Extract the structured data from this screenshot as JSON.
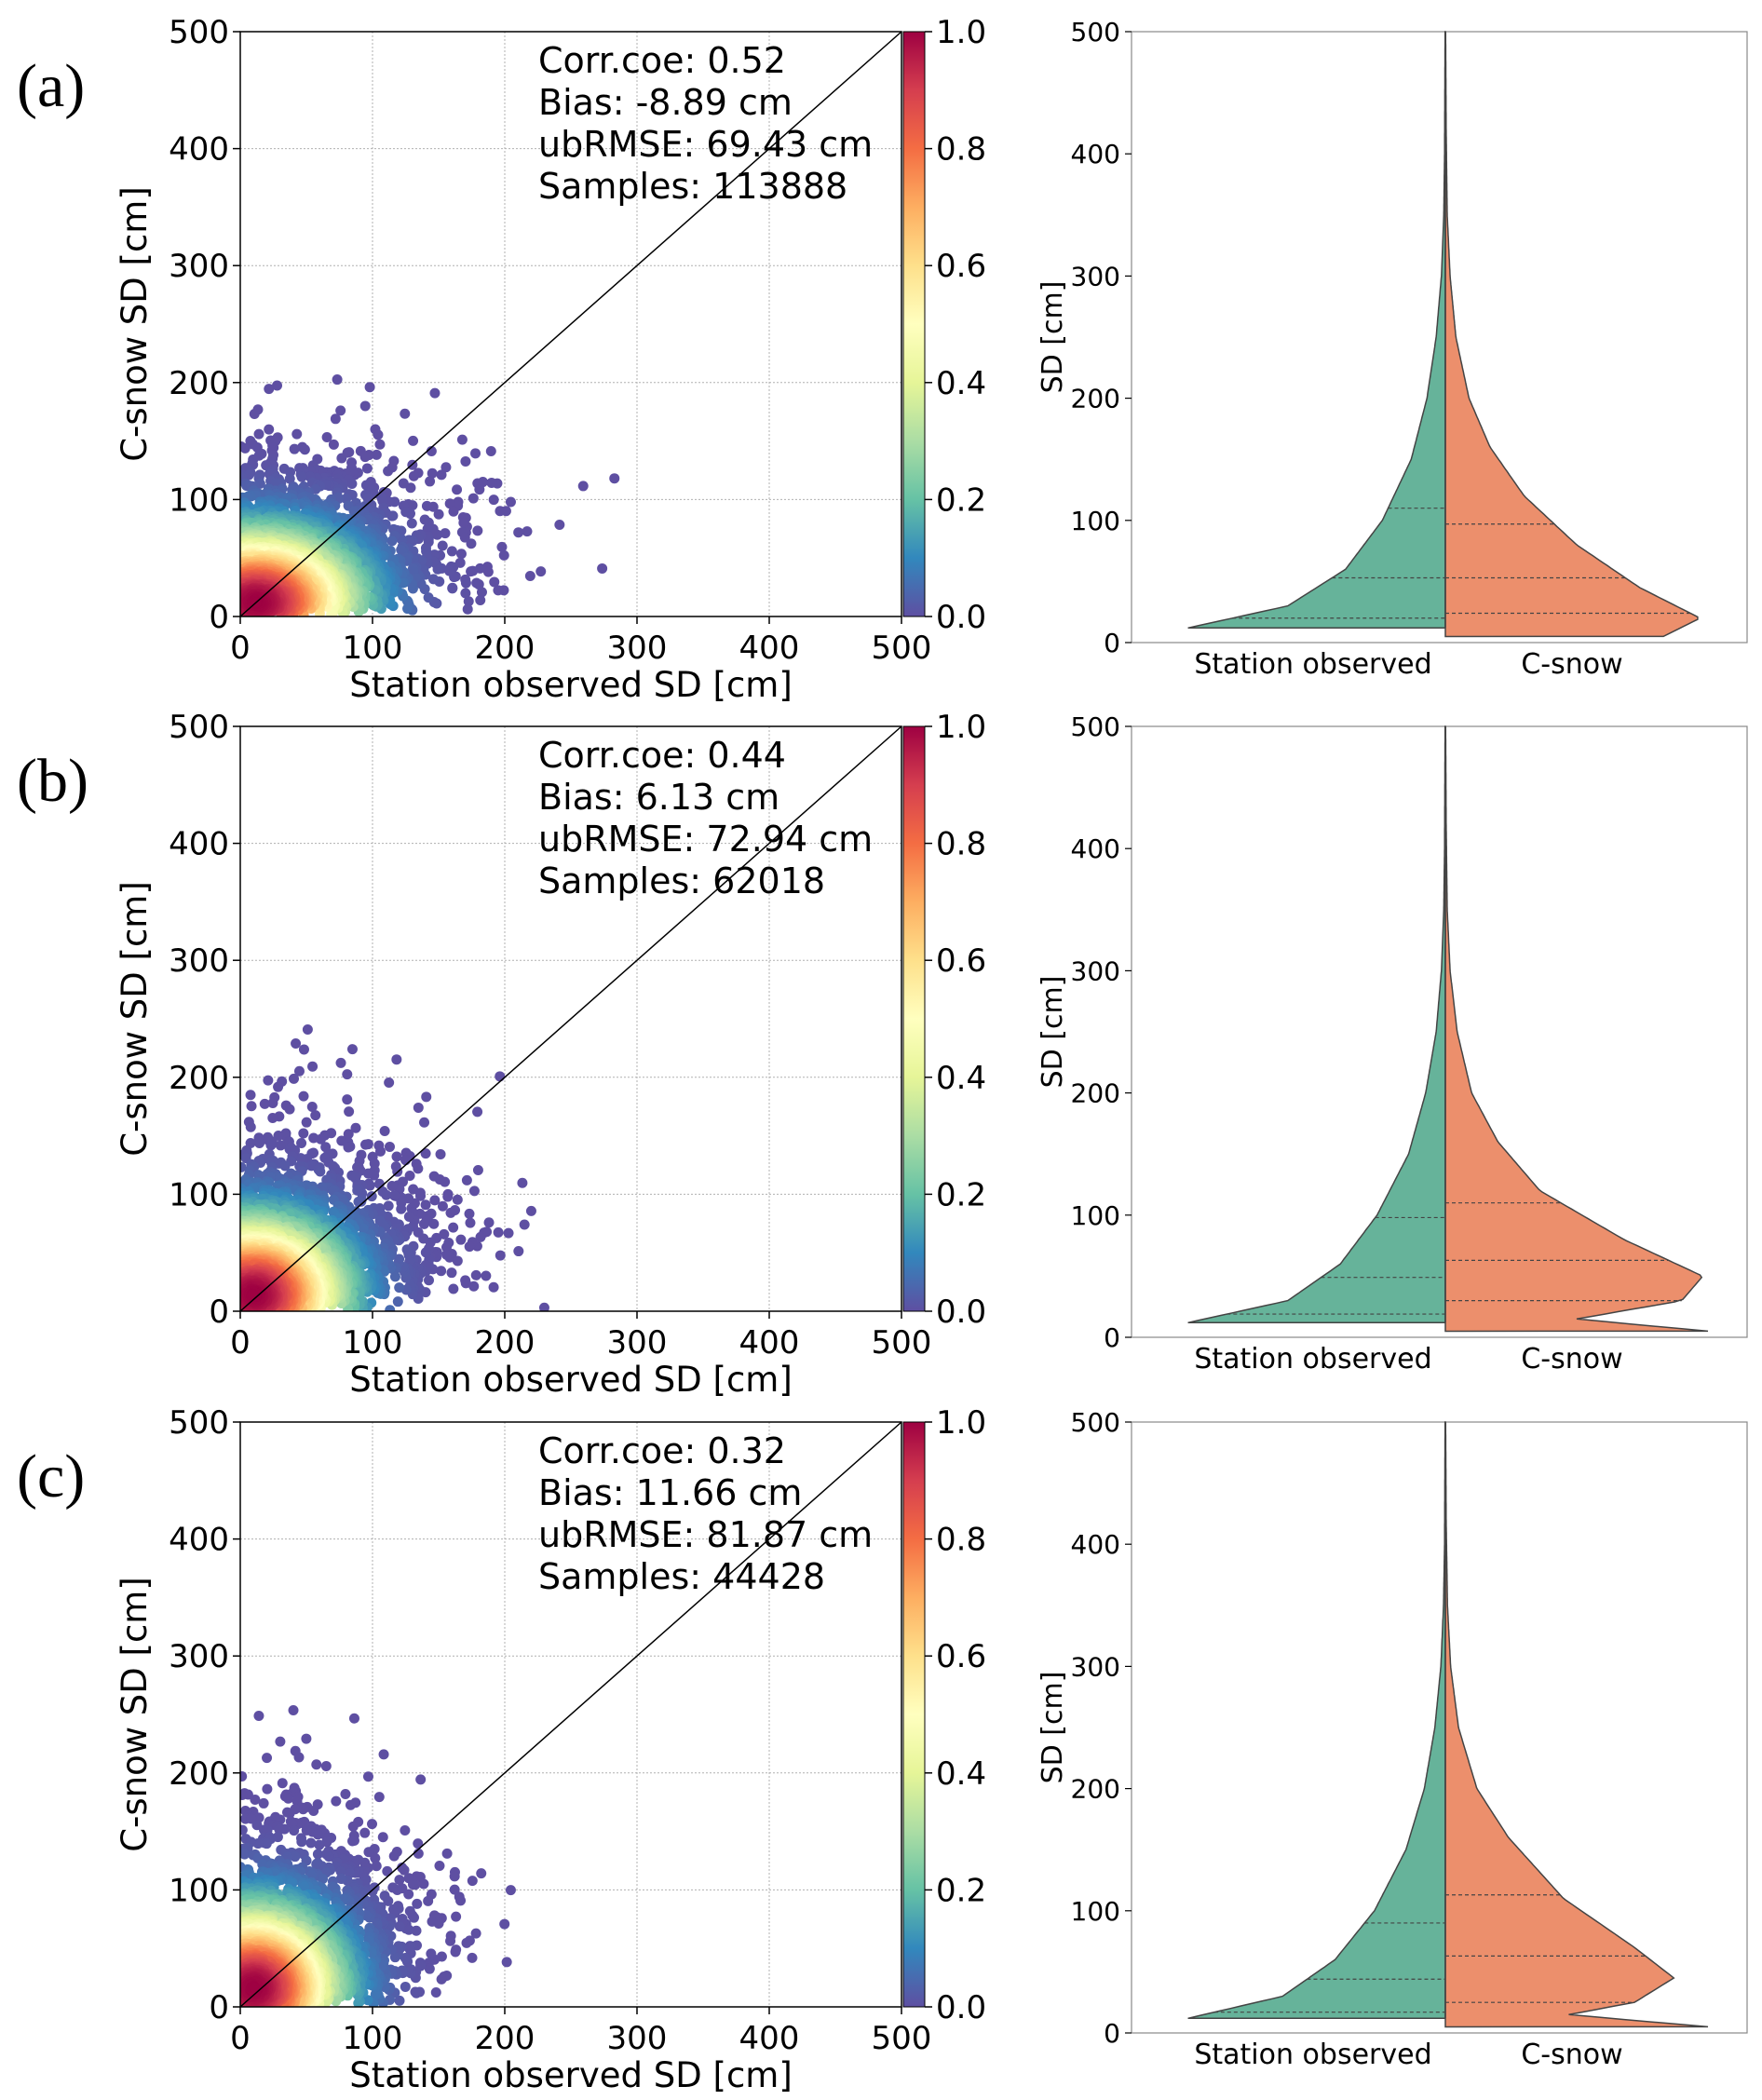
{
  "chart_data": [
    {
      "type": "scatter",
      "panel_label": "(a)",
      "xlabel": "Station observed SD [cm]",
      "ylabel": "C-snow SD [cm]",
      "xlim": [
        0,
        500
      ],
      "ylim": [
        0,
        500
      ],
      "x_ticks": [
        "0",
        "100",
        "200",
        "300",
        "400",
        "500"
      ],
      "y_ticks": [
        "0",
        "100",
        "200",
        "300",
        "400",
        "500"
      ],
      "colorbar_ticks": [
        "0.0",
        "0.2",
        "0.4",
        "0.6",
        "0.8",
        "1.0"
      ],
      "colorbar_range": [
        0,
        1
      ],
      "reference_line": "1:1",
      "stats": {
        "corr": "Corr.coe: 0.52",
        "bias": "Bias: -8.89 cm",
        "ubrmse": "ubRMSE: 69.43 cm",
        "samples": "Samples: 113888"
      },
      "density_center": [
        12,
        12
      ],
      "spread": [
        95,
        75
      ]
    },
    {
      "type": "violin",
      "panel_label": "(a)",
      "ylabel": "SD [cm]",
      "ylim": [
        0,
        500
      ],
      "y_ticks": [
        "0",
        "100",
        "200",
        "300",
        "400",
        "500"
      ],
      "categories": [
        "Station observed",
        "C-snow"
      ],
      "colors": [
        "#66b39a",
        "#ec8f6c"
      ],
      "station_quartiles": [
        20,
        53,
        110
      ],
      "csnow_quartiles": [
        24,
        53,
        97
      ],
      "station_profile": [
        [
          12,
          0.98
        ],
        [
          30,
          0.6
        ],
        [
          60,
          0.38
        ],
        [
          100,
          0.24
        ],
        [
          150,
          0.13
        ],
        [
          200,
          0.07
        ],
        [
          250,
          0.035
        ],
        [
          300,
          0.015
        ],
        [
          350,
          0.006
        ],
        [
          400,
          0.003
        ],
        [
          500,
          0.001
        ]
      ],
      "csnow_profile": [
        [
          5,
          0.83
        ],
        [
          20,
          0.97
        ],
        [
          45,
          0.74
        ],
        [
          80,
          0.5
        ],
        [
          120,
          0.3
        ],
        [
          160,
          0.17
        ],
        [
          200,
          0.09
        ],
        [
          250,
          0.04
        ],
        [
          300,
          0.018
        ],
        [
          350,
          0.007
        ],
        [
          420,
          0.003
        ],
        [
          500,
          0.001
        ]
      ]
    },
    {
      "type": "scatter",
      "panel_label": "(b)",
      "xlabel": "Station observed SD [cm]",
      "ylabel": "C-snow SD [cm]",
      "xlim": [
        0,
        500
      ],
      "ylim": [
        0,
        500
      ],
      "x_ticks": [
        "0",
        "100",
        "200",
        "300",
        "400",
        "500"
      ],
      "y_ticks": [
        "0",
        "100",
        "200",
        "300",
        "400",
        "500"
      ],
      "colorbar_ticks": [
        "0.0",
        "0.2",
        "0.4",
        "0.6",
        "0.8",
        "1.0"
      ],
      "colorbar_range": [
        0,
        1
      ],
      "reference_line": "1:1",
      "stats": {
        "corr": "Corr.coe: 0.44",
        "bias": "Bias: 6.13 cm",
        "ubrmse": "ubRMSE: 72.94 cm",
        "samples": "Samples: 62018"
      },
      "density_center": [
        10,
        14
      ],
      "spread": [
        85,
        80
      ]
    },
    {
      "type": "violin",
      "panel_label": "(b)",
      "ylabel": "SD [cm]",
      "ylim": [
        0,
        500
      ],
      "y_ticks": [
        "0",
        "100",
        "200",
        "300",
        "400",
        "500"
      ],
      "categories": [
        "Station observed",
        "C-snow"
      ],
      "colors": [
        "#66b39a",
        "#ec8f6c"
      ],
      "station_quartiles": [
        19,
        49,
        98
      ],
      "csnow_quartiles": [
        30,
        63,
        110
      ],
      "station_profile": [
        [
          12,
          0.98
        ],
        [
          30,
          0.6
        ],
        [
          60,
          0.4
        ],
        [
          100,
          0.26
        ],
        [
          150,
          0.14
        ],
        [
          200,
          0.075
        ],
        [
          250,
          0.035
        ],
        [
          300,
          0.015
        ],
        [
          350,
          0.006
        ],
        [
          400,
          0.003
        ],
        [
          500,
          0.001
        ]
      ],
      "csnow_profile": [
        [
          5,
          1.0
        ],
        [
          15,
          0.5
        ],
        [
          30,
          0.9
        ],
        [
          50,
          0.98
        ],
        [
          80,
          0.68
        ],
        [
          120,
          0.36
        ],
        [
          160,
          0.2
        ],
        [
          200,
          0.1
        ],
        [
          250,
          0.045
        ],
        [
          300,
          0.018
        ],
        [
          350,
          0.007
        ],
        [
          420,
          0.003
        ],
        [
          500,
          0.001
        ]
      ]
    },
    {
      "type": "scatter",
      "panel_label": "(c)",
      "xlabel": "Station observed SD [cm]",
      "ylabel": "C-snow SD [cm]",
      "xlim": [
        0,
        500
      ],
      "ylim": [
        0,
        500
      ],
      "x_ticks": [
        "0",
        "100",
        "200",
        "300",
        "400",
        "500"
      ],
      "y_ticks": [
        "0",
        "100",
        "200",
        "300",
        "400",
        "500"
      ],
      "colorbar_ticks": [
        "0.0",
        "0.2",
        "0.4",
        "0.6",
        "0.8",
        "1.0"
      ],
      "colorbar_range": [
        0,
        1
      ],
      "reference_line": "1:1",
      "stats": {
        "corr": "Corr.coe: 0.32",
        "bias": "Bias: 11.66 cm",
        "ubrmse": "ubRMSE: 81.87 cm",
        "samples": "Samples: 44428"
      },
      "density_center": [
        10,
        16
      ],
      "spread": [
        80,
        85
      ]
    },
    {
      "type": "violin",
      "panel_label": "(c)",
      "ylabel": "SD [cm]",
      "ylim": [
        0,
        500
      ],
      "y_ticks": [
        "0",
        "100",
        "200",
        "300",
        "400",
        "500"
      ],
      "categories": [
        "Station observed",
        "C-snow"
      ],
      "colors": [
        "#66b39a",
        "#ec8f6c"
      ],
      "station_quartiles": [
        17,
        44,
        90
      ],
      "csnow_quartiles": [
        25,
        63,
        113
      ],
      "station_profile": [
        [
          12,
          0.98
        ],
        [
          30,
          0.62
        ],
        [
          60,
          0.42
        ],
        [
          100,
          0.27
        ],
        [
          150,
          0.15
        ],
        [
          200,
          0.08
        ],
        [
          250,
          0.04
        ],
        [
          300,
          0.017
        ],
        [
          350,
          0.007
        ],
        [
          400,
          0.003
        ],
        [
          500,
          0.001
        ]
      ],
      "csnow_profile": [
        [
          5,
          1.0
        ],
        [
          15,
          0.47
        ],
        [
          25,
          0.72
        ],
        [
          45,
          0.87
        ],
        [
          70,
          0.72
        ],
        [
          110,
          0.45
        ],
        [
          160,
          0.24
        ],
        [
          200,
          0.12
        ],
        [
          250,
          0.05
        ],
        [
          300,
          0.02
        ],
        [
          350,
          0.008
        ],
        [
          420,
          0.003
        ],
        [
          500,
          0.001
        ]
      ]
    }
  ]
}
